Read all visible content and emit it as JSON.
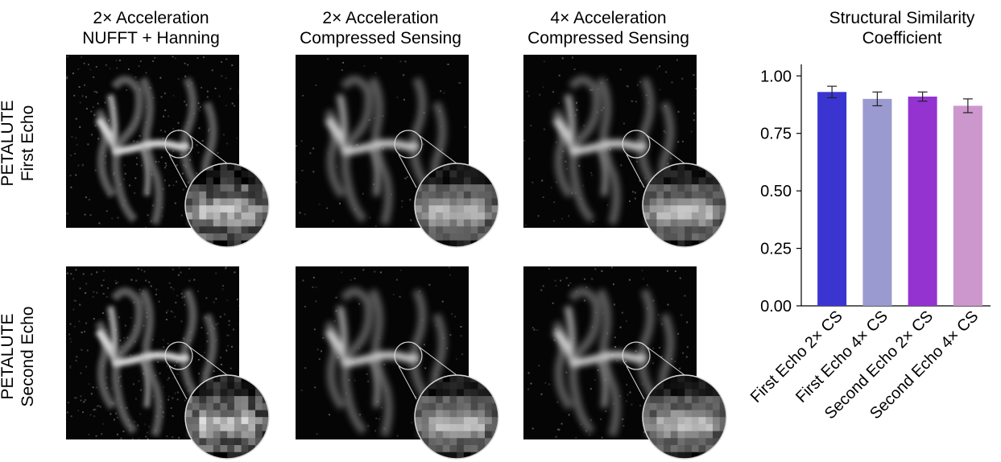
{
  "columns": [
    {
      "line1": "2× Acceleration",
      "line2": "NUFFT + Hanning"
    },
    {
      "line1": "2× Acceleration",
      "line2": "Compressed Sensing"
    },
    {
      "line1": "4× Acceleration",
      "line2": "Compressed Sensing"
    }
  ],
  "rows": [
    {
      "line1": "PETALUTE",
      "line2": "First Echo"
    },
    {
      "line1": "PETALUTE",
      "line2": "Second Echo"
    }
  ],
  "chart_data": {
    "type": "bar",
    "title": "Structural Similarity Coefficient",
    "categories": [
      "First Echo 2× CS",
      "First Echo 4× CS",
      "Second Echo 2× CS",
      "Second Echo 4× CS"
    ],
    "values": [
      0.93,
      0.9,
      0.91,
      0.87
    ],
    "errors": [
      0.025,
      0.03,
      0.02,
      0.03
    ],
    "colors": [
      "#3a35d0",
      "#9a9ad0",
      "#9433d0",
      "#cc97cc"
    ],
    "ylim": [
      0,
      1.05
    ],
    "yticks": [
      "0.00",
      "0.25",
      "0.50",
      "0.75",
      "1.00"
    ],
    "ytick_values": [
      0,
      0.25,
      0.5,
      0.75,
      1.0
    ],
    "grid": false
  }
}
